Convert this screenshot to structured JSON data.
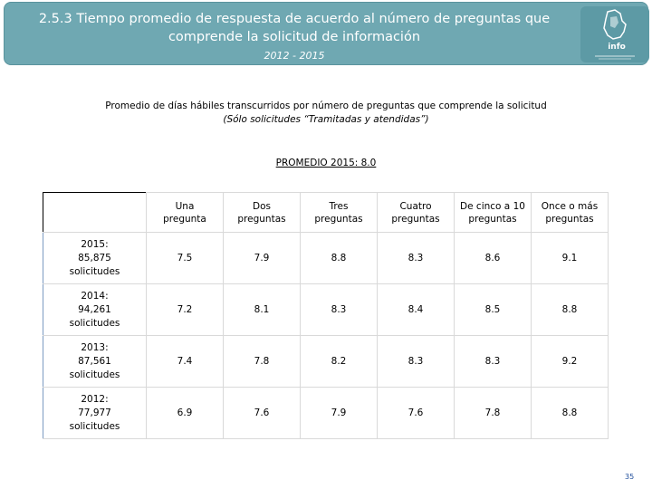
{
  "header": {
    "title_line1": "2.5.3 Tiempo promedio de respuesta de acuerdo al número de preguntas que",
    "title_line2": "comprende la solicitud de información",
    "years": "2012 - 2015",
    "logo_text": "info"
  },
  "subtitle": {
    "line1": "Promedio de días hábiles transcurridos por número de preguntas que comprende la solicitud",
    "line2": "(Sólo solicitudes “Tramitadas y atendidas”)"
  },
  "promedio": "PROMEDIO 2015: 8.0",
  "table": {
    "columns": [
      [
        "Una",
        "pregunta"
      ],
      [
        "Dos",
        "preguntas"
      ],
      [
        "Tres",
        "preguntas"
      ],
      [
        "Cuatro",
        "preguntas"
      ],
      [
        "De cinco a 10",
        "preguntas"
      ],
      [
        "Once o más",
        "preguntas"
      ]
    ],
    "rows": [
      {
        "label": [
          "2015:",
          "85,875",
          "solicitudes"
        ],
        "values": [
          "7.5",
          "7.9",
          "8.8",
          "8.3",
          "8.6",
          "9.1"
        ]
      },
      {
        "label": [
          "2014:",
          "94,261",
          "solicitudes"
        ],
        "values": [
          "7.2",
          "8.1",
          "8.3",
          "8.4",
          "8.5",
          "8.8"
        ]
      },
      {
        "label": [
          "2013:",
          "87,561",
          "solicitudes"
        ],
        "values": [
          "7.4",
          "7.8",
          "8.2",
          "8.3",
          "8.3",
          "9.2"
        ]
      },
      {
        "label": [
          "2012:",
          "77,977",
          "solicitudes"
        ],
        "values": [
          "6.9",
          "7.6",
          "7.9",
          "7.6",
          "7.8",
          "8.8"
        ]
      }
    ]
  },
  "page_number": "35"
}
